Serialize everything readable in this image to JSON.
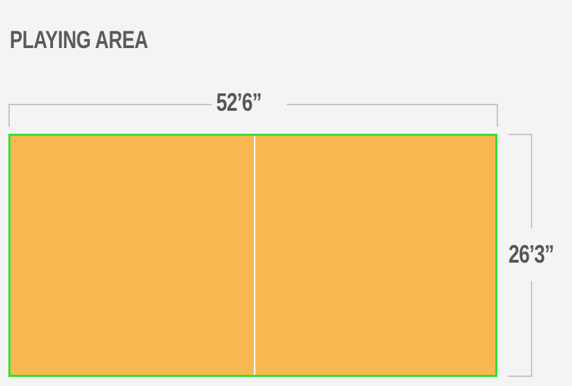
{
  "title": "PLAYING AREA",
  "dimensions": {
    "length": "52’6”",
    "width": "26’3”"
  },
  "colors": {
    "court_fill": "#f8b852",
    "court_border": "#2ee32e",
    "center_line": "#ffffff",
    "dimension_lines": "#c6c6c6",
    "text": "#575757"
  }
}
